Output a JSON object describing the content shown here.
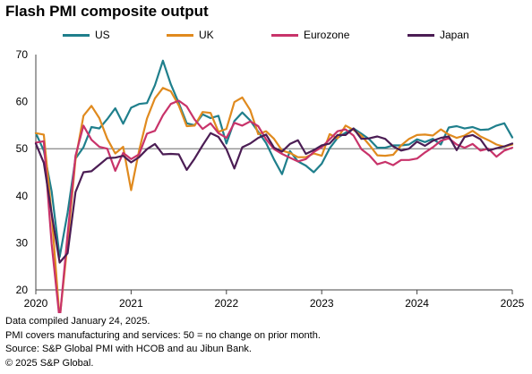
{
  "title": "Flash PMI composite output",
  "footer": {
    "line1": "Data compiled January 24, 2025.",
    "line2": "PMI covers manufacturing and services: 50 = no change on prior month.",
    "line3": "Source: S&P Global PMI with HCOB and au Jibun Bank.",
    "line4": "© 2025 S&P Global."
  },
  "chart_data": {
    "type": "line",
    "title": "Flash PMI composite output",
    "xlabel": "",
    "ylabel": "",
    "x_ticks": [
      "2020",
      "2021",
      "2022",
      "2023",
      "2024",
      "2025"
    ],
    "y_ticks": [
      20,
      30,
      40,
      50,
      60,
      70
    ],
    "ylim": [
      20,
      70
    ],
    "xlim": [
      "2020-01",
      "2025-01"
    ],
    "reference_line": 50,
    "grid": false,
    "legend_position": "top",
    "x": [
      "2020-01",
      "2020-02",
      "2020-03",
      "2020-04",
      "2020-05",
      "2020-06",
      "2020-07",
      "2020-08",
      "2020-09",
      "2020-10",
      "2020-11",
      "2020-12",
      "2021-01",
      "2021-02",
      "2021-03",
      "2021-04",
      "2021-05",
      "2021-06",
      "2021-07",
      "2021-08",
      "2021-09",
      "2021-10",
      "2021-11",
      "2021-12",
      "2022-01",
      "2022-02",
      "2022-03",
      "2022-04",
      "2022-05",
      "2022-06",
      "2022-07",
      "2022-08",
      "2022-09",
      "2022-10",
      "2022-11",
      "2022-12",
      "2023-01",
      "2023-02",
      "2023-03",
      "2023-04",
      "2023-05",
      "2023-06",
      "2023-07",
      "2023-08",
      "2023-09",
      "2023-10",
      "2023-11",
      "2023-12",
      "2024-01",
      "2024-02",
      "2024-03",
      "2024-04",
      "2024-05",
      "2024-06",
      "2024-07",
      "2024-08",
      "2024-09",
      "2024-10",
      "2024-11",
      "2024-12",
      "2025-01"
    ],
    "series": [
      {
        "name": "US",
        "color": "#1f7f8c",
        "values": [
          53.3,
          49.6,
          40.9,
          27.0,
          36.4,
          47.9,
          50.3,
          54.6,
          54.3,
          56.3,
          58.6,
          55.3,
          58.7,
          59.5,
          59.7,
          63.5,
          68.7,
          63.7,
          59.7,
          55.4,
          55.0,
          57.3,
          56.5,
          57.0,
          51.1,
          55.9,
          57.7,
          56.0,
          53.6,
          51.2,
          47.7,
          44.6,
          49.5,
          47.3,
          46.4,
          45.0,
          46.8,
          50.1,
          52.3,
          53.4,
          54.3,
          53.2,
          52.0,
          50.2,
          50.2,
          50.7,
          50.7,
          50.9,
          52.0,
          51.4,
          52.1,
          50.9,
          54.5,
          54.8,
          54.3,
          54.6,
          54.0,
          54.1,
          54.9,
          55.4,
          52.4
        ]
      },
      {
        "name": "UK",
        "color": "#e08a1e",
        "values": [
          53.3,
          53.0,
          36.0,
          13.8,
          30.0,
          47.7,
          57.0,
          59.1,
          56.5,
          52.1,
          49.0,
          50.4,
          41.2,
          49.6,
          56.4,
          60.7,
          62.9,
          62.2,
          59.2,
          54.8,
          54.9,
          57.8,
          57.6,
          53.6,
          54.2,
          59.9,
          60.9,
          58.2,
          53.1,
          53.7,
          52.1,
          49.6,
          49.1,
          48.2,
          48.2,
          49.0,
          48.5,
          53.1,
          52.2,
          54.9,
          54.0,
          52.8,
          50.8,
          48.6,
          48.5,
          48.7,
          50.7,
          52.1,
          52.9,
          53.0,
          52.8,
          54.1,
          53.0,
          52.3,
          52.8,
          53.8,
          52.6,
          51.8,
          50.9,
          50.4,
          50.9
        ]
      },
      {
        "name": "Eurozone",
        "color": "#c8336a",
        "values": [
          51.3,
          51.6,
          29.7,
          13.6,
          31.9,
          48.5,
          54.9,
          51.9,
          50.4,
          50.0,
          45.3,
          49.1,
          47.8,
          48.8,
          53.2,
          53.8,
          57.1,
          59.5,
          60.2,
          59.0,
          56.2,
          54.2,
          55.4,
          53.3,
          52.3,
          55.5,
          54.9,
          55.8,
          54.8,
          52.0,
          49.9,
          48.9,
          48.1,
          47.3,
          47.8,
          49.3,
          50.3,
          52.0,
          53.7,
          54.1,
          52.8,
          49.9,
          48.6,
          46.7,
          47.2,
          46.5,
          47.6,
          47.6,
          47.9,
          49.2,
          50.3,
          51.7,
          52.2,
          50.9,
          50.2,
          51.0,
          49.6,
          50.0,
          48.3,
          49.6,
          50.2
        ]
      },
      {
        "name": "Japan",
        "color": "#4b1d54",
        "values": [
          51.1,
          47.0,
          36.2,
          25.8,
          27.8,
          40.8,
          45.0,
          45.2,
          46.6,
          48.0,
          48.1,
          48.5,
          47.1,
          48.2,
          49.9,
          51.0,
          48.8,
          48.9,
          48.8,
          45.5,
          47.9,
          50.7,
          53.3,
          52.5,
          49.9,
          45.8,
          50.3,
          51.1,
          52.3,
          53.0,
          50.2,
          49.4,
          51.0,
          51.8,
          48.9,
          49.7,
          50.7,
          51.1,
          52.9,
          52.9,
          54.3,
          52.1,
          52.2,
          52.6,
          52.1,
          50.5,
          49.6,
          50.0,
          51.5,
          50.6,
          51.7,
          52.3,
          52.6,
          49.7,
          52.5,
          52.9,
          52.0,
          49.6,
          50.1,
          50.5,
          51.1
        ]
      }
    ]
  }
}
